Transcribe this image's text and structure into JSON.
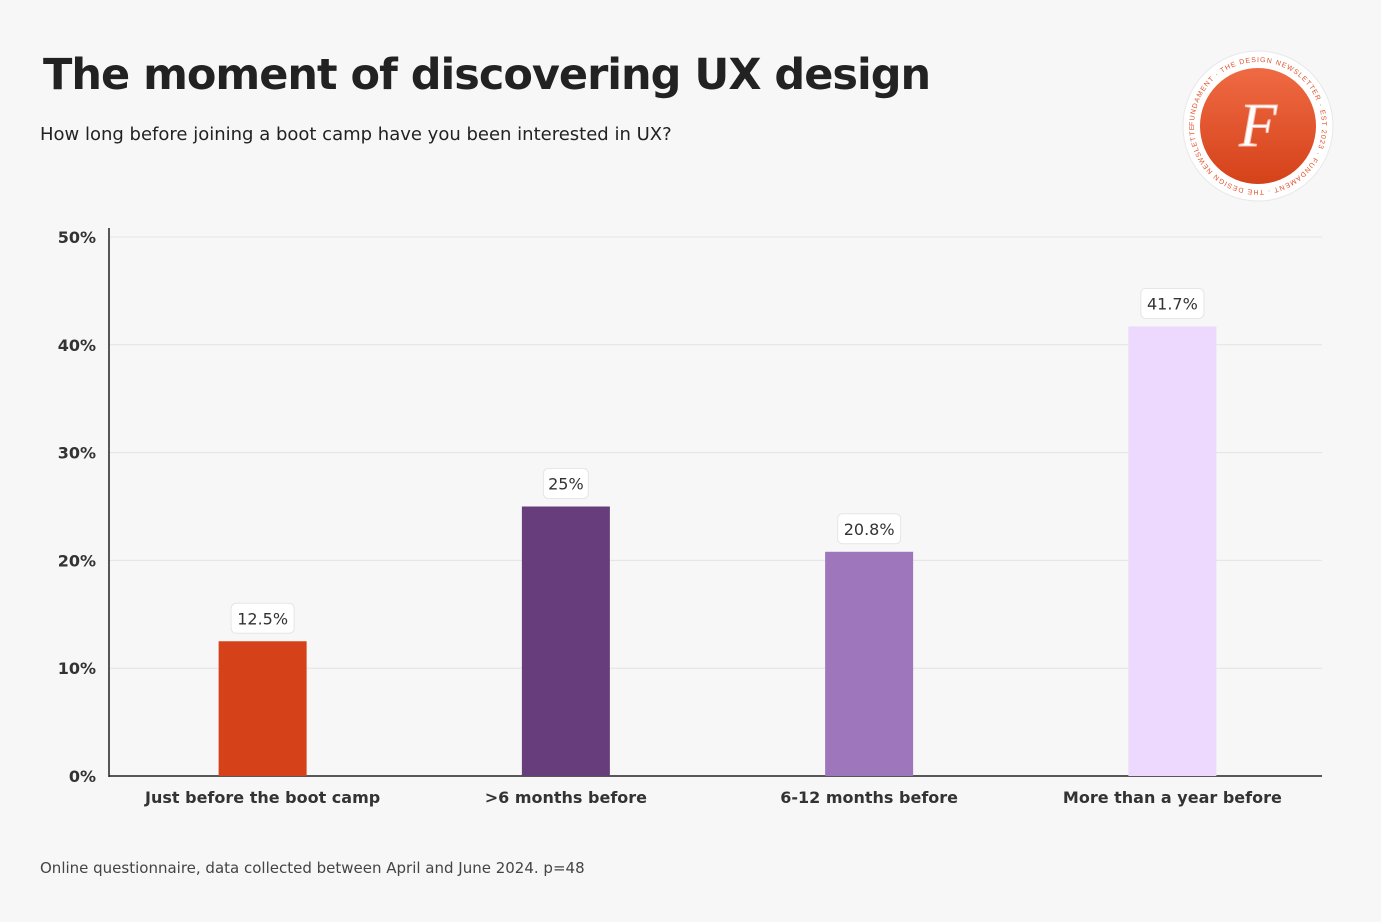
{
  "chart_data": {
    "type": "bar",
    "title": "The moment of discovering UX design",
    "subtitle": "How long before joining a boot camp have you been interested in UX?",
    "categories": [
      "Just before the boot camp",
      ">6 months before",
      "6-12 months before",
      "More than a year before"
    ],
    "values": [
      12.5,
      25,
      20.8,
      41.7
    ],
    "data_labels": [
      "12.5%",
      "25%",
      "20.8%",
      "41.7%"
    ],
    "colors": [
      "#d5421a",
      "#673d7b",
      "#9e76bc",
      "#ecd9fd"
    ],
    "ylim": [
      0,
      50
    ],
    "yticks": [
      0,
      10,
      20,
      30,
      40,
      50
    ],
    "ytick_labels": [
      "0%",
      "10%",
      "20%",
      "30%",
      "40%",
      "50%"
    ],
    "xlabel": "",
    "ylabel": "",
    "grid": true,
    "legend": "none"
  },
  "footer": "Online questionnaire, data collected between April and June 2024. p=48",
  "logo": {
    "ring_text": "FUNDAMENT · THE DESIGN NEWSLETTER · EST 2023 · ",
    "brand_color": "#e2522b"
  }
}
